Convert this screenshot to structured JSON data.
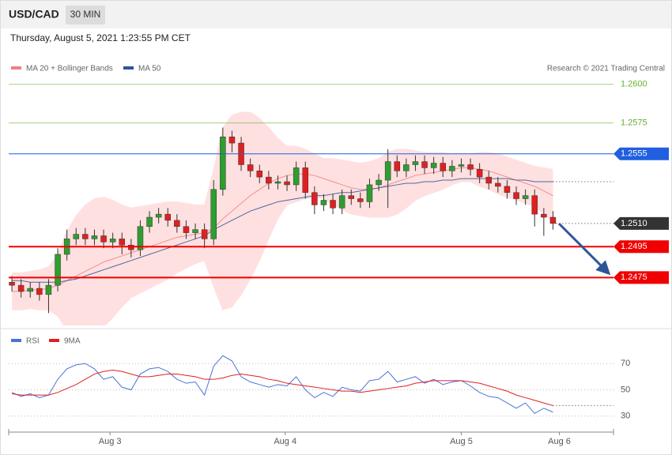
{
  "header": {
    "symbol": "USD/CAD",
    "timeframe": "30 MIN",
    "timestamp": "Thursday, August 5, 2021 1:23:55 PM CET",
    "copyright": "Research © 2021 Trading Central"
  },
  "chart_data": [
    {
      "type": "candlestick",
      "xlim": [
        -0.35,
        65.6
      ],
      "ylim": [
        1.2444,
        1.2606
      ],
      "up_color": "#2e9e2e",
      "down_color": "#e02020",
      "open": [
        1.2472,
        1.247,
        1.2466,
        1.2468,
        1.2464,
        1.247,
        1.249,
        1.25,
        1.2503,
        1.25,
        1.2502,
        1.2498,
        1.25,
        1.2496,
        1.2493,
        1.2508,
        1.2514,
        1.2516,
        1.2512,
        1.2508,
        1.2504,
        1.2506,
        1.25,
        1.2532,
        1.2566,
        1.2562,
        1.2548,
        1.2544,
        1.254,
        1.2536,
        1.2537,
        1.2535,
        1.2546,
        1.253,
        1.2522,
        1.2525,
        1.252,
        1.2528,
        1.2526,
        1.2524,
        1.2535,
        1.2538,
        1.255,
        1.2544,
        1.2548,
        1.255,
        1.2546,
        1.2549,
        1.2544,
        1.2547,
        1.2548,
        1.2545,
        1.254,
        1.2536,
        1.2534,
        1.253,
        1.2526,
        1.2528,
        1.2516,
        1.2514
      ],
      "high": [
        1.2476,
        1.2474,
        1.2472,
        1.2472,
        1.2474,
        1.2494,
        1.2506,
        1.2507,
        1.2507,
        1.2506,
        1.2506,
        1.2504,
        1.2504,
        1.25,
        1.2512,
        1.2518,
        1.252,
        1.252,
        1.2516,
        1.2512,
        1.251,
        1.251,
        1.2538,
        1.2572,
        1.257,
        1.2566,
        1.2552,
        1.2548,
        1.2544,
        1.2541,
        1.2541,
        1.255,
        1.255,
        1.2534,
        1.2529,
        1.2529,
        1.2532,
        1.2532,
        1.253,
        1.2539,
        1.2542,
        1.2558,
        1.2554,
        1.2552,
        1.2554,
        1.2554,
        1.2553,
        1.2553,
        1.2551,
        1.2552,
        1.2552,
        1.2549,
        1.2544,
        1.254,
        1.2538,
        1.2534,
        1.2532,
        1.2532,
        1.252,
        1.2518
      ],
      "low": [
        1.2466,
        1.2462,
        1.2462,
        1.246,
        1.2452,
        1.2466,
        1.2486,
        1.2496,
        1.2496,
        1.2496,
        1.2494,
        1.2494,
        1.249,
        1.2488,
        1.2489,
        1.2504,
        1.251,
        1.2508,
        1.2504,
        1.25,
        1.25,
        1.2494,
        1.2496,
        1.2528,
        1.2556,
        1.2544,
        1.254,
        1.2536,
        1.2532,
        1.2532,
        1.2531,
        1.2531,
        1.2526,
        1.2516,
        1.2518,
        1.2516,
        1.2516,
        1.2522,
        1.252,
        1.252,
        1.2531,
        1.252,
        1.254,
        1.254,
        1.2544,
        1.2542,
        1.2542,
        1.254,
        1.254,
        1.2543,
        1.2541,
        1.2536,
        1.2532,
        1.253,
        1.2526,
        1.2522,
        1.2522,
        1.2508,
        1.2502,
        1.2506
      ],
      "close": [
        1.247,
        1.2466,
        1.2468,
        1.2464,
        1.247,
        1.249,
        1.25,
        1.2503,
        1.25,
        1.2502,
        1.2498,
        1.25,
        1.2496,
        1.2493,
        1.2508,
        1.2514,
        1.2516,
        1.2512,
        1.2508,
        1.2504,
        1.2506,
        1.25,
        1.2532,
        1.2566,
        1.2562,
        1.2548,
        1.2544,
        1.254,
        1.2536,
        1.2537,
        1.2535,
        1.2546,
        1.253,
        1.2522,
        1.2525,
        1.252,
        1.2528,
        1.2526,
        1.2524,
        1.2535,
        1.2538,
        1.255,
        1.2544,
        1.2548,
        1.255,
        1.2546,
        1.2549,
        1.2544,
        1.2547,
        1.2548,
        1.2545,
        1.254,
        1.2536,
        1.2534,
        1.253,
        1.2526,
        1.2528,
        1.2516,
        1.2514,
        1.251
      ],
      "indicators": [
        {
          "name": "MA 20 + Bollinger Bands",
          "color": "#f08080",
          "band_color": "#ffe0e0",
          "values": [
            1.2466,
            1.2466,
            1.2467,
            1.2467,
            1.2468,
            1.247,
            1.2473,
            1.2476,
            1.2479,
            1.2482,
            1.2485,
            1.2487,
            1.2489,
            1.2491,
            1.2493,
            1.2495,
            1.2497,
            1.2499,
            1.2501,
            1.2502,
            1.2503,
            1.2504,
            1.2507,
            1.2513,
            1.2518,
            1.2523,
            1.2528,
            1.2532,
            1.2536,
            1.2539,
            1.2541,
            1.2542,
            1.2542,
            1.2541,
            1.2539,
            1.2537,
            1.2535,
            1.2533,
            1.2532,
            1.2532,
            1.2533,
            1.2535,
            1.2537,
            1.2539,
            1.2541,
            1.2542,
            1.2543,
            1.2544,
            1.2545,
            1.2546,
            1.2546,
            1.2545,
            1.2544,
            1.2542,
            1.254,
            1.2538,
            1.2536,
            1.2534,
            1.2531,
            1.2528
          ],
          "upper": [
            1.2478,
            1.2478,
            1.2479,
            1.248,
            1.2482,
            1.249,
            1.2505,
            1.2515,
            1.2522,
            1.2526,
            1.2527,
            1.2525,
            1.2522,
            1.252,
            1.2521,
            1.2522,
            1.2523,
            1.2524,
            1.2524,
            1.2523,
            1.2522,
            1.2522,
            1.2545,
            1.2572,
            1.258,
            1.2582,
            1.2582,
            1.2578,
            1.2572,
            1.2565,
            1.256,
            1.256,
            1.2558,
            1.2555,
            1.2552,
            1.2552,
            1.2551,
            1.255,
            1.2549,
            1.255,
            1.2552,
            1.2556,
            1.2558,
            1.2558,
            1.2557,
            1.2556,
            1.2556,
            1.2556,
            1.2555,
            1.2555,
            1.2555,
            1.2556,
            1.2556,
            1.2555,
            1.2553,
            1.2551,
            1.2549,
            1.2547,
            1.2546,
            1.2545
          ],
          "lower": [
            1.2454,
            1.2454,
            1.2455,
            1.2454,
            1.2454,
            1.245,
            1.2441,
            1.2437,
            1.2436,
            1.244,
            1.2443,
            1.2449,
            1.2456,
            1.2462,
            1.2465,
            1.2468,
            1.2471,
            1.2474,
            1.2478,
            1.2481,
            1.2484,
            1.2486,
            1.2469,
            1.2454,
            1.2456,
            1.2464,
            1.2474,
            1.2486,
            1.25,
            1.2513,
            1.2522,
            1.2524,
            1.2526,
            1.2527,
            1.2526,
            1.2522,
            1.2519,
            1.2516,
            1.2515,
            1.2514,
            1.2514,
            1.2514,
            1.2516,
            1.252,
            1.2525,
            1.2528,
            1.253,
            1.2532,
            1.2535,
            1.2537,
            1.2537,
            1.2534,
            1.2532,
            1.2529,
            1.2527,
            1.2525,
            1.2523,
            1.2521,
            1.2516,
            1.2511
          ]
        },
        {
          "name": "MA 50",
          "color": "#2e5597",
          "values": [
            1.2473,
            1.2473,
            1.2472,
            1.2472,
            1.2472,
            1.2472,
            1.2473,
            1.2474,
            1.2476,
            1.2478,
            1.248,
            1.2482,
            1.2484,
            1.2486,
            1.2488,
            1.249,
            1.2492,
            1.2494,
            1.2496,
            1.2498,
            1.25,
            1.2502,
            1.2506,
            1.2509,
            1.2512,
            1.2515,
            1.2518,
            1.252,
            1.2522,
            1.2524,
            1.2525,
            1.2526,
            1.2527,
            1.2528,
            1.2528,
            1.2529,
            1.253,
            1.253,
            1.2531,
            1.2532,
            1.2533,
            1.2534,
            1.2535,
            1.2536,
            1.2536,
            1.2537,
            1.2537,
            1.2538,
            1.2538,
            1.2539,
            1.2539,
            1.2539,
            1.2539,
            1.2539,
            1.2539,
            1.2538,
            1.2538,
            1.2537,
            1.2537,
            1.2537
          ]
        }
      ],
      "levels": [
        {
          "value": 1.26,
          "label": "1.2600",
          "color": "#66b032",
          "line": "thin",
          "tag": false
        },
        {
          "value": 1.2575,
          "label": "1.2575",
          "color": "#66b032",
          "line": "thin",
          "tag": false
        },
        {
          "value": 1.2555,
          "label": "1.2555",
          "color": "#1f5fe0",
          "line": "thin",
          "tag": true
        },
        {
          "value": 1.251,
          "label": "1.2510",
          "color": "#333333",
          "line": "dotted",
          "tag": true
        },
        {
          "value": 1.2495,
          "label": "1.2495",
          "color": "#f00000",
          "line": "bold",
          "tag": true
        },
        {
          "value": 1.2475,
          "label": "1.2475",
          "color": "#f00000",
          "line": "bold",
          "tag": true
        }
      ]
    },
    {
      "type": "line",
      "xlim": [
        -0.35,
        65.6
      ],
      "ylim": [
        19,
        90
      ],
      "yticks": [
        70,
        50,
        30
      ],
      "grid": true,
      "xticks": [
        {
          "value": 10.7,
          "label": "Aug 3"
        },
        {
          "value": 29.8,
          "label": "Aug 4"
        },
        {
          "value": 49.0,
          "label": "Aug 5"
        },
        {
          "value": 59.7,
          "label": "Aug 6"
        }
      ],
      "series": [
        {
          "name": "RSI",
          "color": "#4a72d8",
          "values": [
            48,
            45,
            47,
            44,
            46,
            58,
            66,
            69,
            70,
            66,
            58,
            60,
            52,
            50,
            62,
            66,
            67,
            64,
            58,
            55,
            56,
            46,
            68,
            76,
            72,
            60,
            56,
            54,
            52,
            54,
            53,
            60,
            50,
            44,
            48,
            45,
            52,
            50,
            49,
            57,
            58,
            64,
            56,
            58,
            60,
            55,
            58,
            54,
            56,
            57,
            53,
            48,
            45,
            44,
            40,
            36,
            40,
            32,
            36,
            33
          ]
        },
        {
          "name": "9MA",
          "color": "#e02020",
          "values": [
            47,
            46,
            46,
            46,
            46,
            48,
            51,
            54,
            58,
            62,
            64,
            65,
            64,
            62,
            60,
            60,
            61,
            62,
            62,
            61,
            60,
            58,
            58,
            59,
            61,
            62,
            61,
            60,
            58,
            57,
            55,
            54,
            53,
            52,
            51,
            50,
            49,
            49,
            48,
            49,
            50,
            51,
            52,
            53,
            55,
            56,
            57,
            57,
            57,
            57,
            56,
            55,
            53,
            51,
            49,
            46,
            44,
            42,
            40,
            38
          ]
        }
      ]
    }
  ]
}
